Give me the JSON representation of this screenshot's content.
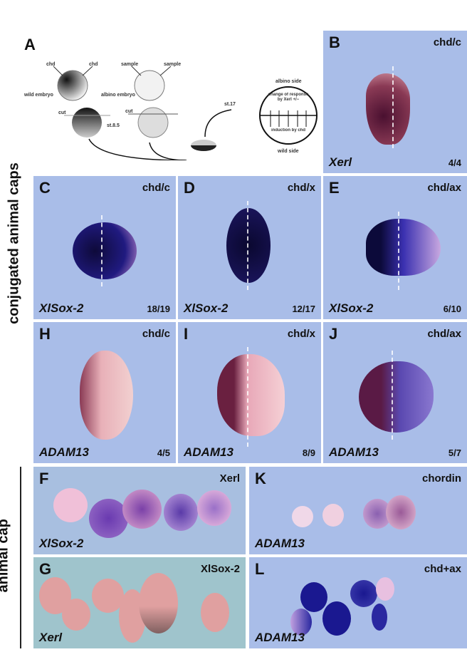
{
  "side_labels": {
    "top": "conjugated animal caps",
    "bottom": "animal cap"
  },
  "panel_a": {
    "label": "A",
    "wild_chd_left": "chd",
    "wild_chd_right": "chd",
    "albino_left": "sample",
    "albino_right": "sample",
    "wild_embryo": "wild embryo",
    "albino_embryo": "albino embryo",
    "cut_left": "cut",
    "cut_right": "cut",
    "stage_cut": "st.8.5",
    "stage_end": "st.17",
    "albino_side": "albino side",
    "change_of_response": "change of response by Xerl +/−",
    "induction": "induction by chd",
    "wild_side": "wild side"
  },
  "panels": [
    {
      "id": "B",
      "condition": "chd/c",
      "gene": "Xerl",
      "ratio": "4/4"
    },
    {
      "id": "C",
      "condition": "chd/c",
      "gene": "XlSox-2",
      "ratio": "18/19"
    },
    {
      "id": "D",
      "condition": "chd/x",
      "gene": "XlSox-2",
      "ratio": "12/17"
    },
    {
      "id": "E",
      "condition": "chd/ax",
      "gene": "XlSox-2",
      "ratio": "6/10"
    },
    {
      "id": "H",
      "condition": "chd/c",
      "gene": "ADAM13",
      "ratio": "4/5"
    },
    {
      "id": "I",
      "condition": "chd/x",
      "gene": "ADAM13",
      "ratio": "8/9"
    },
    {
      "id": "J",
      "condition": "chd/ax",
      "gene": "ADAM13",
      "ratio": "5/7"
    },
    {
      "id": "F",
      "condition": "Xerl",
      "gene": "XlSox-2"
    },
    {
      "id": "G",
      "condition": "XlSox-2",
      "gene": "Xerl"
    },
    {
      "id": "K",
      "condition": "chordin",
      "gene": "ADAM13"
    },
    {
      "id": "L",
      "condition": "chd+ax",
      "gene": "ADAM13"
    }
  ]
}
